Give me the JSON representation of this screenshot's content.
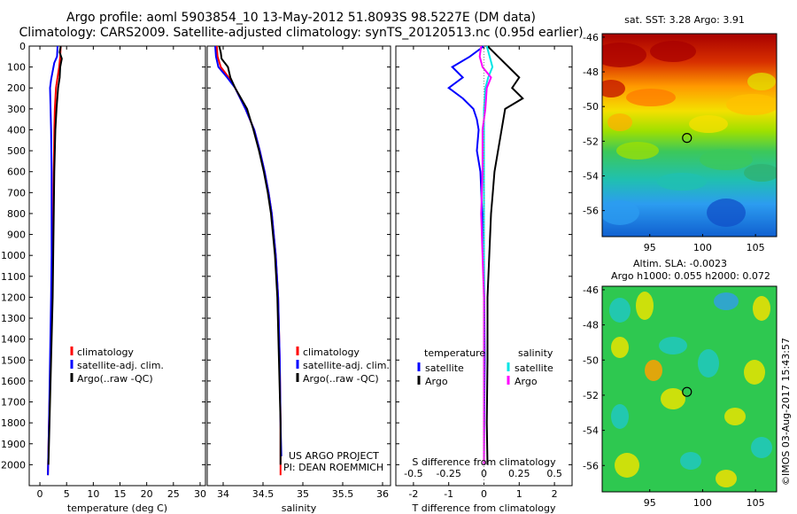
{
  "header": {
    "title_line1": "Argo profile: aoml 5903854_10 13-May-2012 51.8093S 98.5227E (DM data)",
    "title_line2": "Climatology: CARS2009. Satellite-adjusted climatology: synTS_20120513.nc (0.95d earlier)"
  },
  "credits": {
    "project": "US ARGO PROJECT",
    "pi": "PI: DEAN ROEMMICH",
    "stamp": "©IMOS 03-Aug-2017 15:43:57"
  },
  "colors": {
    "climatology": "#ff0000",
    "satellite": "#0000ff",
    "argo": "#000000",
    "sal_satellite": "#00e5e5",
    "sal_argo": "#ff00ff"
  },
  "chart_data": [
    {
      "type": "line",
      "id": "temperature",
      "xlabel": "temperature (deg C)",
      "ylabel": "",
      "xlim": [
        -2,
        31
      ],
      "ylim": [
        2100,
        0
      ],
      "xticks": [
        0,
        5,
        10,
        15,
        20,
        25,
        30
      ],
      "yticks": [
        0,
        100,
        200,
        300,
        400,
        500,
        600,
        700,
        800,
        900,
        1000,
        1100,
        1200,
        1300,
        1400,
        1500,
        1600,
        1700,
        1800,
        1900,
        2000
      ],
      "legend": [
        "climatology",
        "satellite-adj. clim.",
        "Argo(..raw -QC)"
      ],
      "series": [
        {
          "name": "climatology",
          "color": "#ff0000",
          "depth": [
            0,
            50,
            100,
            150,
            200,
            300,
            400,
            600,
            800,
            1000,
            1200,
            1500,
            1800,
            2050
          ],
          "values": [
            3.9,
            3.8,
            3.6,
            3.3,
            3.0,
            2.8,
            2.7,
            2.6,
            2.5,
            2.4,
            2.3,
            2.0,
            1.7,
            1.5
          ]
        },
        {
          "name": "satellite-adj. clim.",
          "color": "#0000ff",
          "depth": [
            0,
            50,
            80,
            120,
            160,
            200,
            300,
            400,
            600,
            800,
            1000,
            1200,
            1500,
            1800,
            2050
          ],
          "values": [
            3.3,
            3.2,
            2.7,
            2.4,
            2.1,
            1.9,
            2.0,
            2.1,
            2.2,
            2.2,
            2.2,
            2.1,
            1.9,
            1.7,
            1.5
          ]
        },
        {
          "name": "Argo(..raw -QC)",
          "color": "#000000",
          "depth": [
            0,
            30,
            60,
            100,
            150,
            200,
            300,
            400,
            600,
            800,
            1000,
            1200,
            1500,
            1800,
            2000
          ],
          "values": [
            3.9,
            3.7,
            4.1,
            3.8,
            3.7,
            3.4,
            3.1,
            2.9,
            2.7,
            2.6,
            2.5,
            2.4,
            2.1,
            1.8,
            1.6
          ]
        }
      ]
    },
    {
      "type": "line",
      "id": "salinity",
      "xlabel": "salinity",
      "ylabel": "",
      "xlim": [
        33.8,
        36.1
      ],
      "ylim": [
        2100,
        0
      ],
      "xticks": [
        34,
        34.5,
        35,
        35.5,
        36
      ],
      "legend": [
        "climatology",
        "satellite-adj. clim.",
        "Argo(..raw -QC)"
      ],
      "series": [
        {
          "name": "climatology",
          "color": "#ff0000",
          "depth": [
            0,
            50,
            100,
            150,
            200,
            300,
            400,
            500,
            600,
            700,
            800,
            1000,
            1200,
            1500,
            1800,
            2050
          ],
          "values": [
            33.92,
            33.93,
            33.97,
            34.07,
            34.15,
            34.28,
            34.39,
            34.46,
            34.52,
            34.57,
            34.61,
            34.66,
            34.69,
            34.71,
            34.72,
            34.72
          ]
        },
        {
          "name": "satellite-adj. clim.",
          "color": "#0000ff",
          "depth": [
            0,
            50,
            100,
            150,
            200,
            300,
            400,
            500,
            600,
            700,
            800,
            1000,
            1200,
            1500,
            1800,
            1960
          ],
          "values": [
            33.9,
            33.91,
            33.94,
            34.05,
            34.15,
            34.28,
            34.39,
            34.46,
            34.52,
            34.57,
            34.61,
            34.66,
            34.69,
            34.71,
            34.72,
            34.73
          ]
        },
        {
          "name": "Argo(..raw -QC)",
          "color": "#000000",
          "depth": [
            0,
            30,
            60,
            100,
            150,
            200,
            300,
            400,
            500,
            600,
            700,
            800,
            1000,
            1200,
            1500,
            1800,
            2000
          ],
          "values": [
            33.95,
            33.97,
            33.98,
            34.06,
            34.09,
            34.15,
            34.3,
            34.38,
            34.45,
            34.51,
            34.56,
            34.6,
            34.65,
            34.68,
            34.7,
            34.72,
            34.72
          ]
        }
      ]
    },
    {
      "type": "line",
      "id": "differences",
      "xlabel": "T difference from climatology",
      "xlabel_top": "S difference from climatology",
      "xlim": [
        -2.5,
        2.5
      ],
      "xticks": [
        -2,
        -1,
        0,
        1,
        2
      ],
      "s_ticks": [
        "-0.5",
        "-0.25",
        "0",
        "0.25",
        "0.5"
      ],
      "ylim": [
        2100,
        0
      ],
      "legend_groups": [
        "temperature",
        "salinity"
      ],
      "legend": [
        {
          "group": "temperature",
          "label": "satellite",
          "color": "#0000ff"
        },
        {
          "group": "temperature",
          "label": "Argo",
          "color": "#000000"
        },
        {
          "group": "salinity",
          "label": "satellite",
          "color": "#00e5e5"
        },
        {
          "group": "salinity",
          "label": "Argo",
          "color": "#ff00ff"
        }
      ],
      "series": [
        {
          "name": "T satellite",
          "color": "#0000ff",
          "depth": [
            0,
            50,
            100,
            150,
            200,
            250,
            300,
            350,
            400,
            500,
            600,
            800,
            1000,
            1500,
            2000
          ],
          "values": [
            0,
            -0.4,
            -0.9,
            -0.6,
            -1.0,
            -0.6,
            -0.3,
            -0.2,
            -0.15,
            -0.2,
            -0.1,
            -0.05,
            0,
            0.02,
            0
          ]
        },
        {
          "name": "T Argo",
          "color": "#000000",
          "depth": [
            0,
            50,
            100,
            150,
            200,
            250,
            300,
            400,
            500,
            600,
            700,
            800,
            1000,
            1200,
            1500,
            1800,
            2000
          ],
          "values": [
            0.1,
            0.4,
            0.7,
            1.0,
            0.8,
            1.1,
            0.6,
            0.5,
            0.4,
            0.3,
            0.25,
            0.2,
            0.15,
            0.1,
            0.1,
            0.08,
            0.1
          ]
        },
        {
          "name": "S satellite",
          "color": "#00e5e5",
          "depth": [
            0,
            50,
            100,
            150,
            200,
            300,
            400,
            600,
            800,
            1000,
            1500,
            2000
          ],
          "values": [
            0.02,
            0.04,
            0.06,
            0.03,
            0.01,
            0.0,
            0.0,
            0.0,
            0.0,
            0.0,
            0.0,
            0.0
          ]
        },
        {
          "name": "S Argo",
          "color": "#ff00ff",
          "depth": [
            0,
            50,
            100,
            150,
            200,
            300,
            400,
            600,
            800,
            1000,
            1200,
            1500,
            2000
          ],
          "values": [
            -0.02,
            -0.03,
            -0.01,
            0.05,
            0.02,
            0.01,
            -0.01,
            -0.01,
            -0.02,
            -0.01,
            0,
            0,
            0
          ]
        }
      ]
    },
    {
      "type": "heatmap",
      "id": "sst-map",
      "title": "sat. SST: 3.28 Argo: 3.91",
      "xticks": [
        95,
        100,
        105
      ],
      "yticks": [
        -46,
        -48,
        -50,
        -52,
        -54,
        -56
      ],
      "xlim": [
        90.5,
        107
      ],
      "ylim": [
        -57.5,
        -45.8
      ],
      "marker": {
        "lon": 98.52,
        "lat": -51.81
      }
    },
    {
      "type": "heatmap",
      "id": "sla-map",
      "title_line1": "Altim. SLA: -0.0023",
      "title_line2": "Argo h1000: 0.055 h2000: 0.072",
      "xticks": [
        95,
        100,
        105
      ],
      "yticks": [
        -46,
        -48,
        -50,
        -52,
        -54,
        -56
      ],
      "xlim": [
        90.5,
        107
      ],
      "ylim": [
        -57.5,
        -45.8
      ],
      "marker": {
        "lon": 98.52,
        "lat": -51.81
      }
    }
  ]
}
